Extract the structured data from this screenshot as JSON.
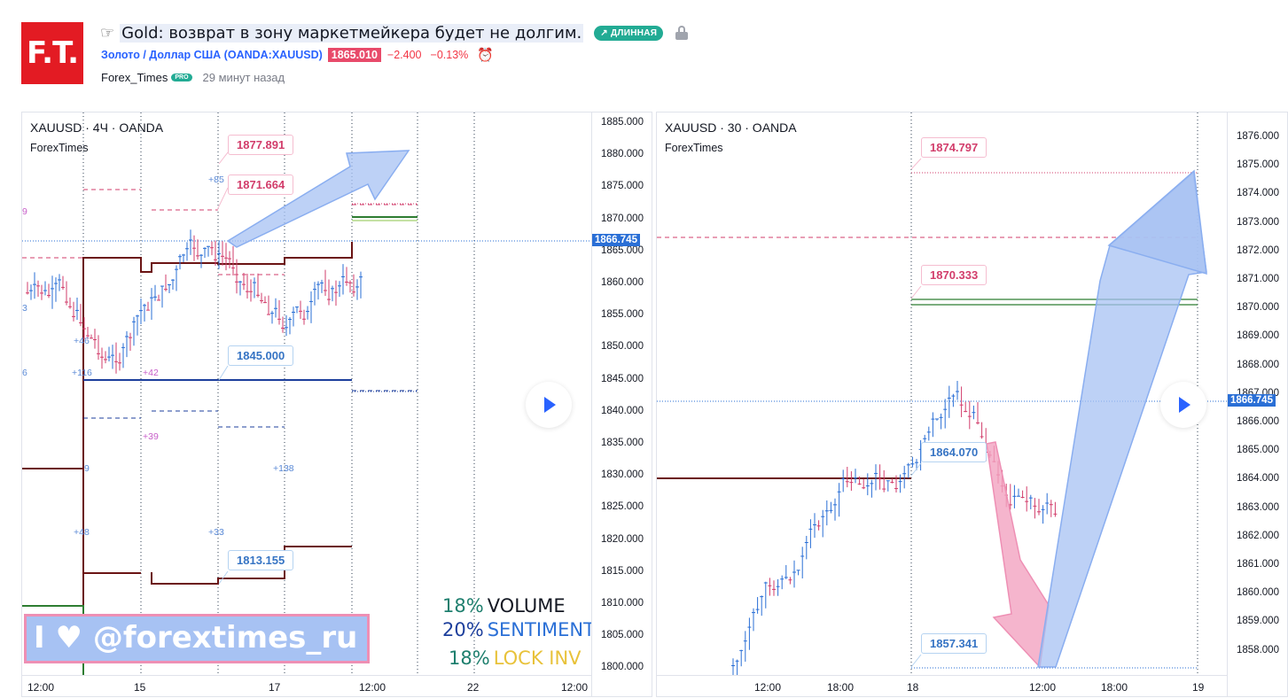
{
  "header": {
    "logo_text": "F.T.",
    "hand_icon": "pointing-hand-icon",
    "idea_title": "Gold: возврат в зону маркетмейкера будет не долгим.",
    "direction_badge": "↗ ДЛИННАЯ",
    "symbol_link": "Золото / Доллар США (OANDA:XAUUSD)",
    "price": "1865.010",
    "change_abs": "−2.400",
    "change_pct": "−0.13%",
    "author": "Forex_Times",
    "pro_badge": "PRO",
    "published": "29 минут назад",
    "colors": {
      "accent": "#2962ff",
      "badge": "#22ab94",
      "price_box": "#e84a6a",
      "negative": "#f23645",
      "logo": "#e31b23"
    }
  },
  "chart_left": {
    "legend": "XAUUSD · 4Ч · OANDA",
    "sub_legend": "ForexTimes",
    "price_ticks": [
      "1885.000",
      "1880.000",
      "1875.000",
      "1870.000",
      "1865.000",
      "1860.000",
      "1855.000",
      "1850.000",
      "1845.000",
      "1840.000",
      "1835.000",
      "1830.000",
      "1825.000",
      "1820.000",
      "1815.000",
      "1810.000",
      "1805.000",
      "1800.000"
    ],
    "last_price": "1866.745",
    "time_ticks": [
      "12:00",
      "15",
      "17",
      "12:00",
      "22",
      "12:00"
    ],
    "callouts": [
      "1877.891",
      "1871.664",
      "1845.000",
      "1813.155"
    ],
    "mini_labels": [
      "+85",
      "+46",
      "+116",
      "+42",
      "+39",
      "9",
      "+138",
      "+48",
      "+33",
      "9",
      "3",
      "6"
    ],
    "watermark": {
      "prefix": "I",
      "heart": "heart-icon",
      "handle": "@forextimes_ru"
    },
    "stats": [
      {
        "pct": "18%",
        "label": "VOLUME",
        "pct_color": "#1e7f6e",
        "label_color": "#131722"
      },
      {
        "pct": "20%",
        "label": "SENTIMENT",
        "pct_color": "#1d3f9c",
        "label_color": "#2a6fd6"
      },
      {
        "pct": "18%",
        "label": "LOCK INV",
        "pct_color": "#1e7f6e",
        "label_color": "#e8c23a"
      }
    ]
  },
  "chart_right": {
    "legend": "XAUUSD · 30 · OANDA",
    "sub_legend": "ForexTimes",
    "price_ticks": [
      "1876.000",
      "1875.000",
      "1874.000",
      "1873.000",
      "1872.000",
      "1871.000",
      "1870.000",
      "1869.000",
      "1868.000",
      "1867.000",
      "1866.000",
      "1865.000",
      "1864.000",
      "1863.000",
      "1862.000",
      "1861.000",
      "1860.000",
      "1859.000",
      "1858.000"
    ],
    "last_price": "1866.745",
    "time_ticks": [
      "12:00",
      "18:00",
      "18",
      "12:00",
      "18:00",
      "19"
    ],
    "callouts": [
      "1874.797",
      "1870.333",
      "1864.070",
      "1857.341"
    ]
  }
}
